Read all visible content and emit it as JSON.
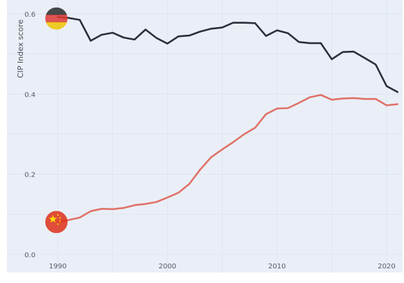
{
  "chart_data": {
    "type": "line",
    "title": "",
    "xlabel": "",
    "ylabel": "CIP Index score",
    "xlim": [
      1990,
      2021
    ],
    "ylim": [
      0,
      0.6
    ],
    "grid": true,
    "legend": "flag markers at series start",
    "x_ticks": [
      "1990",
      "2000",
      "2010",
      "2020"
    ],
    "y_ticks": [
      "0.0",
      "0.2",
      "0.4",
      "0.6"
    ],
    "x": [
      1990,
      1991,
      1992,
      1993,
      1994,
      1995,
      1996,
      1997,
      1998,
      1999,
      2000,
      2001,
      2002,
      2003,
      2004,
      2005,
      2006,
      2007,
      2008,
      2009,
      2010,
      2011,
      2012,
      2013,
      2014,
      2015,
      2016,
      2017,
      2018,
      2019,
      2020,
      2021
    ],
    "series": [
      {
        "name": "",
        "flag": "germany-flag-icon",
        "color": "#2b2f3a",
        "values": [
          0.592,
          0.59,
          0.585,
          0.533,
          0.548,
          0.553,
          0.541,
          0.536,
          0.561,
          0.54,
          0.526,
          0.544,
          0.546,
          0.556,
          0.563,
          0.566,
          0.578,
          0.578,
          0.577,
          0.545,
          0.559,
          0.552,
          0.53,
          0.527,
          0.527,
          0.487,
          0.505,
          0.506,
          0.49,
          0.474,
          0.42,
          0.405
        ]
      },
      {
        "name": "",
        "flag": "china-flag-icon",
        "color": "#e07268",
        "values": [
          0.081,
          0.086,
          0.092,
          0.108,
          0.114,
          0.113,
          0.116,
          0.123,
          0.126,
          0.131,
          0.142,
          0.154,
          0.176,
          0.212,
          0.243,
          0.262,
          0.28,
          0.3,
          0.316,
          0.35,
          0.364,
          0.365,
          0.378,
          0.392,
          0.398,
          0.386,
          0.389,
          0.39,
          0.388,
          0.388,
          0.372,
          0.375
        ]
      }
    ]
  },
  "colors": {
    "plot_background": "#eaeff7",
    "grid": "#dfe5ee",
    "germany_flag": [
      "#2a2a2a",
      "#dd3a32",
      "#f0c400"
    ],
    "china_flag": [
      "#de2910",
      "#ffde00"
    ]
  }
}
